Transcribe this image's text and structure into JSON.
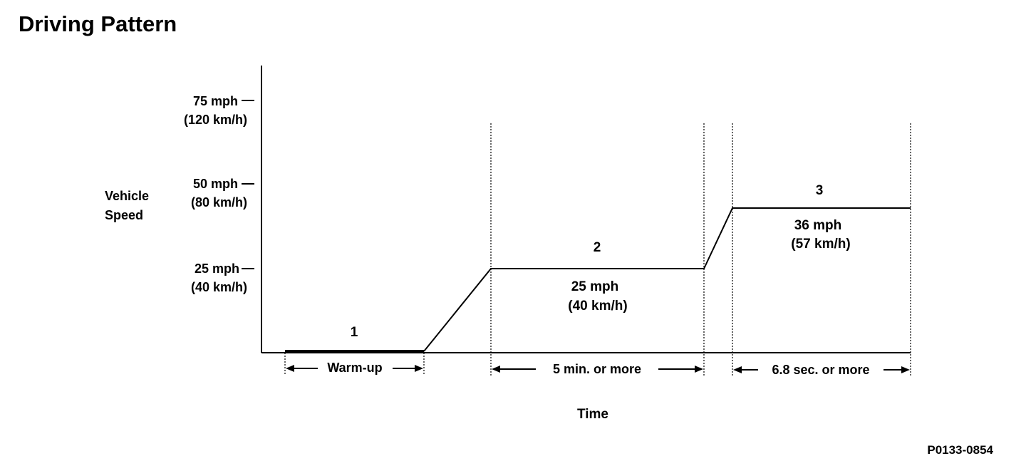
{
  "title": "Driving Pattern",
  "figure_id": "P0133-0854",
  "y_axis_label": [
    "Vehicle",
    "Speed"
  ],
  "x_axis_label": "Time",
  "speed_ticks": [
    {
      "mph": "75 mph",
      "kmh": "(120 km/h)"
    },
    {
      "mph": "50 mph",
      "kmh": "(80 km/h)"
    },
    {
      "mph": "25 mph",
      "kmh": "(40 km/h)"
    }
  ],
  "phases": [
    {
      "number": "1",
      "duration": "Warm-up"
    },
    {
      "number": "2",
      "speed_mph": "25 mph",
      "speed_kmh": "(40 km/h)",
      "duration": "5 min. or more"
    },
    {
      "number": "3",
      "speed_mph": "36 mph",
      "speed_kmh": "(57 km/h)",
      "duration": "6.8 sec. or more"
    }
  ],
  "colors": {
    "line": "#000000",
    "background": "#ffffff"
  }
}
